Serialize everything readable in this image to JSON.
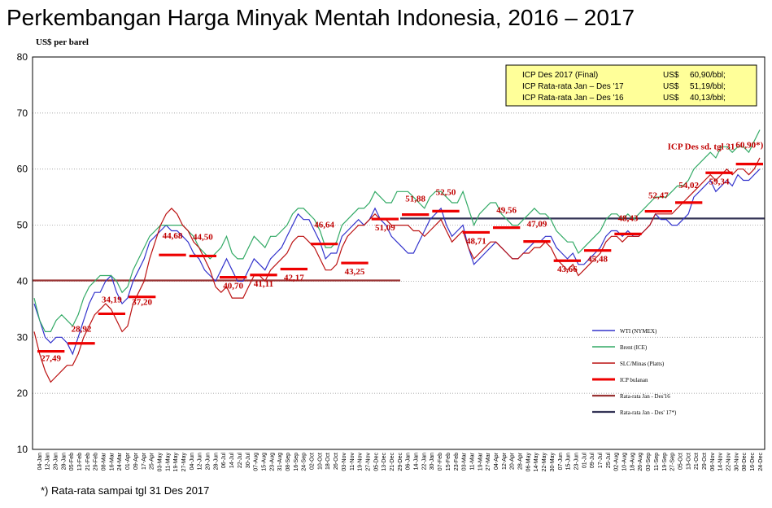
{
  "chart_data": {
    "type": "line",
    "title": "Perkembangan Harga Minyak Mentah Indonesia, 2016 – 2017",
    "ylabel": "US$ per barel",
    "ylim": [
      10,
      80
    ],
    "yticks": [
      10,
      20,
      30,
      40,
      50,
      60,
      70,
      80
    ],
    "grid": true,
    "legend_position": "bottom-right",
    "x_tick_labels": [
      "04-Jan",
      "12-Jan",
      "20-Jan",
      "28-Jan",
      "05-Feb",
      "13-Feb",
      "21-Feb",
      "29-Feb",
      "08-Mar",
      "16-Mar",
      "24-Mar",
      "01-Apr",
      "09-Apr",
      "17-Apr",
      "25-Apr",
      "03-May",
      "11-May",
      "19-May",
      "27-May",
      "04-Jun",
      "12-Jun",
      "20-Jun",
      "28-Jun",
      "06-Jul",
      "14-Jul",
      "22-Jul",
      "30-Jul",
      "07-Aug",
      "15-Aug",
      "23-Aug",
      "31-Aug",
      "08-Sep",
      "16-Sep",
      "24-Sep",
      "02-Oct",
      "10-Oct",
      "18-Oct",
      "26-Oct",
      "03-Nov",
      "11-Nov",
      "19-Nov",
      "27-Nov",
      "05-Dec",
      "13-Dec",
      "21-Dec",
      "29-Dec",
      "06-Jan",
      "14-Jan",
      "22-Jan",
      "30-Jan",
      "07-Feb",
      "15-Feb",
      "23-Feb",
      "03-Mar",
      "11-Mar",
      "19-Mar",
      "27-Mar",
      "04-Apr",
      "12-Apr",
      "20-Apr",
      "28-Apr",
      "06-May",
      "14-May",
      "22-May",
      "30-May",
      "07-Jun",
      "15-Jun",
      "23-Jun",
      "01-Jul",
      "09-Jul",
      "17-Jul",
      "25-Jul",
      "02-Aug",
      "10-Aug",
      "18-Aug",
      "26-Aug",
      "03-Sep",
      "11-Sep",
      "19-Sep",
      "27-Sep",
      "05-Oct",
      "13-Oct",
      "21-Oct",
      "29-Oct",
      "06-Nov",
      "14-Nov",
      "22-Nov",
      "30-Nov",
      "08-Dec",
      "16-Dec",
      "24-Dec"
    ],
    "series": [
      {
        "name": "WTI (NYMEX)",
        "color": "#3333cc",
        "values": [
          36,
          33,
          30,
          29,
          30,
          30,
          29,
          27,
          30,
          33,
          36,
          38,
          38,
          40,
          41,
          38,
          36,
          37,
          40,
          42,
          44,
          47,
          48,
          49,
          50,
          49,
          49,
          48,
          47,
          45,
          44,
          42,
          41,
          40,
          42,
          44,
          42,
          40,
          40,
          42,
          44,
          43,
          42,
          44,
          45,
          46,
          48,
          50,
          52,
          51,
          51,
          49,
          47,
          44,
          45,
          45,
          48,
          49,
          50,
          51,
          50,
          51,
          53,
          51,
          50,
          48,
          47,
          46,
          45,
          45,
          47,
          49,
          51,
          52,
          53,
          50,
          48,
          49,
          50,
          46,
          43,
          44,
          45,
          46,
          47,
          46,
          45,
          44,
          44,
          45,
          46,
          47,
          47,
          48,
          48,
          46,
          45,
          44,
          45,
          43,
          43,
          44,
          45,
          46,
          48,
          49,
          49,
          48,
          49,
          48,
          48,
          49,
          50,
          52,
          51,
          51,
          50,
          50,
          51,
          52,
          55,
          56,
          57,
          58,
          56,
          57,
          58,
          57,
          59,
          58,
          58,
          59,
          60
        ]
      },
      {
        "name": "Brent (ICE)",
        "color": "#33aa66",
        "values": [
          37,
          33,
          31,
          31,
          33,
          34,
          33,
          32,
          34,
          37,
          39,
          40,
          41,
          41,
          41,
          40,
          38,
          39,
          42,
          44,
          46,
          48,
          49,
          50,
          50,
          50,
          50,
          50,
          49,
          48,
          46,
          45,
          44,
          45,
          46,
          48,
          45,
          44,
          44,
          46,
          48,
          47,
          46,
          48,
          48,
          49,
          50,
          52,
          53,
          53,
          52,
          51,
          49,
          46,
          46,
          47,
          50,
          51,
          52,
          53,
          53,
          54,
          56,
          55,
          54,
          54,
          56,
          56,
          56,
          55,
          54,
          53,
          55,
          56,
          56,
          55,
          54,
          54,
          56,
          53,
          50,
          52,
          53,
          54,
          54,
          52,
          51,
          50,
          50,
          51,
          52,
          53,
          52,
          52,
          51,
          49,
          48,
          47,
          47,
          45,
          46,
          47,
          48,
          49,
          51,
          52,
          52,
          51,
          52,
          51,
          52,
          53,
          54,
          55,
          55,
          55,
          56,
          57,
          57,
          58,
          60,
          61,
          62,
          63,
          62,
          64,
          64,
          63,
          64,
          64,
          63,
          65,
          67
        ]
      },
      {
        "name": "SLC/Minas (Platts)",
        "color": "#bb1111",
        "values": [
          31,
          27,
          24,
          22,
          23,
          24,
          25,
          25,
          27,
          30,
          32,
          34,
          35,
          36,
          35,
          33,
          31,
          32,
          36,
          38,
          40,
          44,
          47,
          50,
          52,
          53,
          52,
          50,
          49,
          47,
          46,
          44,
          42,
          39,
          38,
          39,
          37,
          37,
          37,
          39,
          41,
          41,
          40,
          42,
          43,
          44,
          45,
          47,
          48,
          48,
          47,
          46,
          44,
          42,
          42,
          43,
          46,
          48,
          49,
          50,
          50,
          51,
          52,
          51,
          51,
          50,
          50,
          50,
          50,
          49,
          49,
          48,
          49,
          50,
          51,
          49,
          47,
          48,
          49,
          46,
          44,
          45,
          46,
          47,
          47,
          46,
          45,
          44,
          44,
          45,
          45,
          46,
          46,
          47,
          46,
          44,
          43,
          42,
          43,
          41,
          42,
          43,
          44,
          45,
          47,
          48,
          48,
          47,
          48,
          48,
          48,
          49,
          50,
          52,
          52,
          52,
          52,
          53,
          54,
          55,
          56,
          57,
          58,
          59,
          58,
          59,
          60,
          59,
          60,
          60,
          59,
          60,
          62
        ]
      }
    ],
    "icp_monthly": {
      "name": "ICP bulanan",
      "color": "#ee0000",
      "labels": [
        "27,49",
        "28,92",
        "34,19",
        "37,20",
        "44,68",
        "44,50",
        "40,70",
        "41,11",
        "42,17",
        "46,64",
        "43,25",
        "51,09",
        "51,88",
        "52,50",
        "48,71",
        "49,56",
        "47,09",
        "43,66",
        "45,48",
        "48,43",
        "52,47",
        "54,02",
        "59,34",
        "60,90*)"
      ],
      "values": [
        27.49,
        28.92,
        34.19,
        37.2,
        44.68,
        44.5,
        40.7,
        41.11,
        42.17,
        46.64,
        43.25,
        51.09,
        51.88,
        52.5,
        48.71,
        49.56,
        47.09,
        43.66,
        45.48,
        48.43,
        52.47,
        54.02,
        59.34,
        60.9
      ]
    },
    "averages": [
      {
        "name": "Rata-rata Jan - Des'16",
        "color": "#993333",
        "value": 40.13
      },
      {
        "name": "Rata-rata Jan - Des' 17*)",
        "color": "#333355",
        "value": 51.19
      }
    ],
    "info_box": [
      {
        "label": "ICP Des 2017 (Final)",
        "currency": "US$",
        "value": "60,90/bbl;"
      },
      {
        "label": "ICP Rata-rata  Jan – Des '17",
        "currency": "US$",
        "value": "51,19/bbl;"
      },
      {
        "label": "ICP Rata-rata  Jan – Des '16",
        "currency": "US$",
        "value": "40,13/bbl;"
      }
    ],
    "annotation": "ICP Des sd. tgl 31"
  },
  "footnote": "*) Rata-rata sampai  tgl  31 Des 2017"
}
